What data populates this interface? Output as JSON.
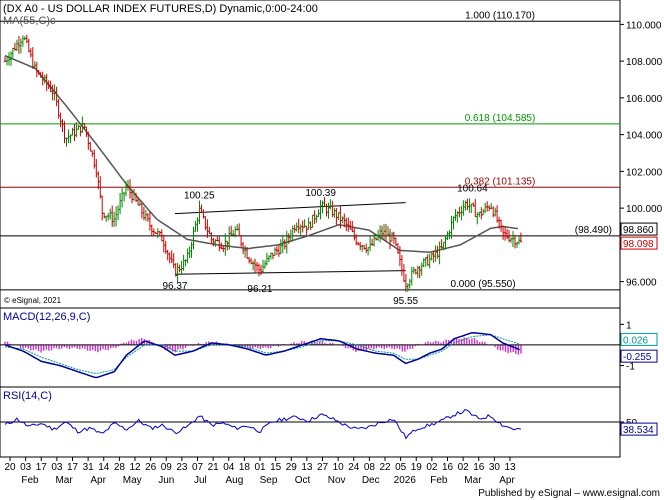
{
  "chart_data": {
    "type": "line",
    "title": "(DX A0 - US DOLLAR INDEX FUTURES,D) Dynamic,0:00-24:00",
    "ma_label": "MA(55,C)c",
    "watermark": "© eSignal, 2021",
    "footer": "Published by eSignal – www.esignal.com",
    "ylim": [
      95,
      111
    ],
    "y_ticks": [
      96,
      98,
      100,
      102,
      104,
      106,
      108,
      110
    ],
    "x_day_ticks": [
      "20",
      "03",
      "17",
      "03",
      "17",
      "31",
      "14",
      "28",
      "12",
      "26",
      "09",
      "23",
      "07",
      "21",
      "04",
      "18",
      "01",
      "15",
      "29",
      "13",
      "27",
      "10",
      "24",
      "08",
      "22",
      "05",
      "19",
      "02",
      "16",
      "02",
      "16",
      "30",
      "13"
    ],
    "x_month_ticks": [
      "Feb",
      "Mar",
      "Apr",
      "May",
      "Jun",
      "Jul",
      "Aug",
      "Sep",
      "Oct",
      "Nov",
      "Dec",
      "2026",
      "Feb",
      "Mar",
      "Apr"
    ],
    "fib_levels": [
      {
        "label": "1.000 (110.170)",
        "value": 110.17,
        "color": "#000000"
      },
      {
        "label": "0.618 (104.585)",
        "value": 104.585,
        "color": "#009900"
      },
      {
        "label": "0.382 (101.135)",
        "value": 101.135,
        "color": "#990000"
      },
      {
        "label": "(98.490)",
        "value": 98.49,
        "color": "#000000"
      },
      {
        "label": "0.000 (95.550)",
        "value": 95.55,
        "color": "#000000"
      }
    ],
    "annotations": [
      {
        "text": "100.25",
        "t": 0.32,
        "y": 100.25,
        "pos": "above"
      },
      {
        "text": "100.39",
        "t": 0.52,
        "y": 100.39,
        "pos": "above"
      },
      {
        "text": "100.64",
        "t": 0.77,
        "y": 100.64,
        "pos": "above"
      },
      {
        "text": "96.37",
        "t": 0.28,
        "y": 96.37,
        "pos": "below"
      },
      {
        "text": "96.21",
        "t": 0.42,
        "y": 96.21,
        "pos": "below"
      },
      {
        "text": "95.55",
        "t": 0.66,
        "y": 95.55,
        "pos": "below"
      }
    ],
    "price_badges": [
      {
        "label": "98.860",
        "value": 98.86,
        "color": "#000000"
      },
      {
        "label": "98.098",
        "value": 98.098,
        "color": "#cc0000"
      }
    ],
    "price_keypoints": [
      [
        0.0,
        108.0
      ],
      [
        0.03,
        109.4
      ],
      [
        0.05,
        107.5
      ],
      [
        0.08,
        106.3
      ],
      [
        0.1,
        103.8
      ],
      [
        0.13,
        104.5
      ],
      [
        0.15,
        102.2
      ],
      [
        0.16,
        99.8
      ],
      [
        0.18,
        99.4
      ],
      [
        0.2,
        101.2
      ],
      [
        0.22,
        100.1
      ],
      [
        0.24,
        99.0
      ],
      [
        0.26,
        98.3
      ],
      [
        0.28,
        96.5
      ],
      [
        0.3,
        97.2
      ],
      [
        0.32,
        99.9
      ],
      [
        0.34,
        98.3
      ],
      [
        0.36,
        98.0
      ],
      [
        0.38,
        98.8
      ],
      [
        0.4,
        97.4
      ],
      [
        0.42,
        96.6
      ],
      [
        0.44,
        97.5
      ],
      [
        0.46,
        98.0
      ],
      [
        0.48,
        99.2
      ],
      [
        0.5,
        99.0
      ],
      [
        0.52,
        100.1
      ],
      [
        0.54,
        99.8
      ],
      [
        0.56,
        99.2
      ],
      [
        0.58,
        98.2
      ],
      [
        0.6,
        97.8
      ],
      [
        0.62,
        98.7
      ],
      [
        0.64,
        98.3
      ],
      [
        0.66,
        95.9
      ],
      [
        0.68,
        96.8
      ],
      [
        0.7,
        97.2
      ],
      [
        0.72,
        97.8
      ],
      [
        0.74,
        99.5
      ],
      [
        0.76,
        100.3
      ],
      [
        0.78,
        99.6
      ],
      [
        0.8,
        100.2
      ],
      [
        0.82,
        98.6
      ],
      [
        0.84,
        98.3
      ],
      [
        0.85,
        98.1
      ]
    ],
    "ma_keypoints": [
      [
        0.0,
        108.3
      ],
      [
        0.05,
        107.6
      ],
      [
        0.1,
        105.6
      ],
      [
        0.15,
        103.5
      ],
      [
        0.2,
        101.3
      ],
      [
        0.25,
        99.4
      ],
      [
        0.3,
        98.3
      ],
      [
        0.35,
        98.0
      ],
      [
        0.4,
        97.8
      ],
      [
        0.45,
        98.0
      ],
      [
        0.5,
        98.5
      ],
      [
        0.55,
        99.1
      ],
      [
        0.6,
        98.8
      ],
      [
        0.65,
        97.7
      ],
      [
        0.7,
        97.6
      ],
      [
        0.75,
        98.0
      ],
      [
        0.8,
        98.9
      ],
      [
        0.82,
        99.0
      ],
      [
        0.85,
        98.86
      ]
    ],
    "trend_channel": [
      {
        "t1": 0.28,
        "y1": 99.7,
        "t2": 0.66,
        "y2": 100.3
      },
      {
        "t1": 0.28,
        "y1": 96.4,
        "t2": 0.66,
        "y2": 96.6
      }
    ],
    "macd": {
      "label": "MACD(12,26,9,C)",
      "ylim": [
        -1.9,
        1.6
      ],
      "y_ticks": [
        1,
        -1
      ],
      "badges": [
        {
          "label": "0.026",
          "value": 0.026,
          "color": "#009999"
        },
        {
          "label": "-0.255",
          "value": -0.255,
          "color": "#000099"
        }
      ],
      "macd_keypoints": [
        [
          0.0,
          0.0
        ],
        [
          0.03,
          -0.3
        ],
        [
          0.06,
          -0.8
        ],
        [
          0.09,
          -1.0
        ],
        [
          0.12,
          -1.3
        ],
        [
          0.15,
          -1.6
        ],
        [
          0.18,
          -1.3
        ],
        [
          0.2,
          -0.5
        ],
        [
          0.23,
          0.2
        ],
        [
          0.26,
          -0.1
        ],
        [
          0.28,
          -0.5
        ],
        [
          0.31,
          -0.3
        ],
        [
          0.34,
          0.1
        ],
        [
          0.37,
          0.0
        ],
        [
          0.4,
          -0.2
        ],
        [
          0.43,
          -0.5
        ],
        [
          0.46,
          -0.3
        ],
        [
          0.49,
          0.0
        ],
        [
          0.52,
          0.3
        ],
        [
          0.55,
          0.2
        ],
        [
          0.58,
          -0.2
        ],
        [
          0.61,
          -0.4
        ],
        [
          0.64,
          -0.5
        ],
        [
          0.66,
          -0.9
        ],
        [
          0.68,
          -0.7
        ],
        [
          0.7,
          -0.4
        ],
        [
          0.72,
          -0.2
        ],
        [
          0.74,
          0.3
        ],
        [
          0.77,
          0.6
        ],
        [
          0.8,
          0.5
        ],
        [
          0.82,
          0.1
        ],
        [
          0.85,
          -0.255
        ]
      ],
      "signal_keypoints": [
        [
          0.0,
          -0.1
        ],
        [
          0.03,
          -0.2
        ],
        [
          0.06,
          -0.6
        ],
        [
          0.09,
          -0.9
        ],
        [
          0.12,
          -1.2
        ],
        [
          0.15,
          -1.4
        ],
        [
          0.18,
          -1.2
        ],
        [
          0.2,
          -0.6
        ],
        [
          0.23,
          0.0
        ],
        [
          0.26,
          0.0
        ],
        [
          0.28,
          -0.3
        ],
        [
          0.31,
          -0.3
        ],
        [
          0.34,
          0.0
        ],
        [
          0.37,
          0.0
        ],
        [
          0.4,
          -0.1
        ],
        [
          0.43,
          -0.4
        ],
        [
          0.46,
          -0.3
        ],
        [
          0.49,
          -0.1
        ],
        [
          0.52,
          0.2
        ],
        [
          0.55,
          0.2
        ],
        [
          0.58,
          0.0
        ],
        [
          0.61,
          -0.3
        ],
        [
          0.64,
          -0.4
        ],
        [
          0.66,
          -0.7
        ],
        [
          0.68,
          -0.7
        ],
        [
          0.7,
          -0.5
        ],
        [
          0.72,
          -0.3
        ],
        [
          0.74,
          0.1
        ],
        [
          0.77,
          0.4
        ],
        [
          0.8,
          0.5
        ],
        [
          0.82,
          0.3
        ],
        [
          0.85,
          0.026
        ]
      ]
    },
    "rsi": {
      "label": "RSI(14,C)",
      "ylim": [
        0,
        100
      ],
      "y_ticks": [
        50
      ],
      "badge": {
        "label": "38.534",
        "value": 38.534,
        "color": "#000099"
      },
      "rsi_keypoints": [
        [
          0.0,
          45
        ],
        [
          0.02,
          55
        ],
        [
          0.04,
          42
        ],
        [
          0.06,
          48
        ],
        [
          0.08,
          38
        ],
        [
          0.1,
          50
        ],
        [
          0.12,
          35
        ],
        [
          0.14,
          40
        ],
        [
          0.16,
          30
        ],
        [
          0.18,
          48
        ],
        [
          0.2,
          38
        ],
        [
          0.22,
          52
        ],
        [
          0.24,
          40
        ],
        [
          0.26,
          45
        ],
        [
          0.28,
          33
        ],
        [
          0.3,
          42
        ],
        [
          0.32,
          60
        ],
        [
          0.34,
          45
        ],
        [
          0.36,
          48
        ],
        [
          0.38,
          40
        ],
        [
          0.4,
          44
        ],
        [
          0.42,
          35
        ],
        [
          0.44,
          50
        ],
        [
          0.46,
          55
        ],
        [
          0.48,
          58
        ],
        [
          0.5,
          52
        ],
        [
          0.52,
          62
        ],
        [
          0.54,
          55
        ],
        [
          0.56,
          45
        ],
        [
          0.58,
          38
        ],
        [
          0.6,
          42
        ],
        [
          0.62,
          50
        ],
        [
          0.64,
          55
        ],
        [
          0.66,
          25
        ],
        [
          0.68,
          40
        ],
        [
          0.7,
          45
        ],
        [
          0.72,
          52
        ],
        [
          0.74,
          62
        ],
        [
          0.76,
          68
        ],
        [
          0.78,
          55
        ],
        [
          0.8,
          60
        ],
        [
          0.82,
          45
        ],
        [
          0.84,
          38
        ],
        [
          0.85,
          38.534
        ]
      ]
    }
  }
}
